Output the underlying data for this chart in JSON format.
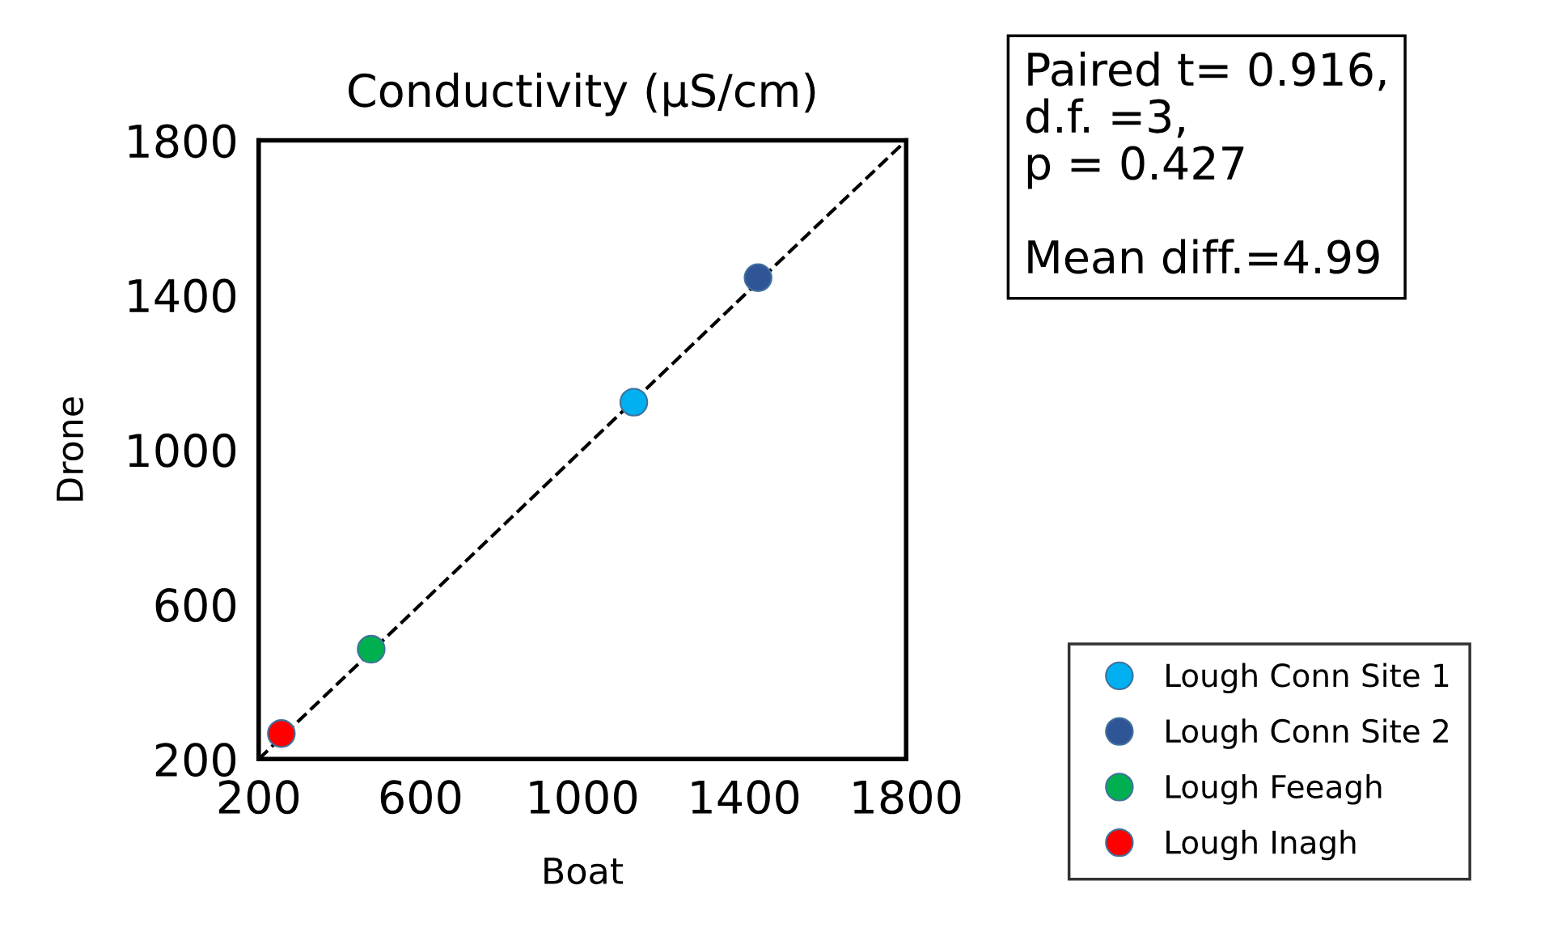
{
  "chart_data": {
    "type": "scatter",
    "title": "Conductivity (µS/cm)",
    "xlabel": "Boat",
    "ylabel": "Drone",
    "xlim": [
      200,
      1800
    ],
    "ylim": [
      200,
      1800
    ],
    "xticks": [
      200,
      600,
      1000,
      1400,
      1800
    ],
    "yticks": [
      200,
      600,
      1000,
      1400,
      1800
    ],
    "grid": false,
    "legend": "bottom right",
    "marker": "circle",
    "series": [
      {
        "name": "Lough Conn Site 1",
        "color": "#00b0f0",
        "x": [
          1127
        ],
        "values": [
          1123
        ]
      },
      {
        "name": "Lough Conn Site 2",
        "color": "#2f5597",
        "x": [
          1434
        ],
        "values": [
          1445
        ]
      },
      {
        "name": "Lough Feeagh",
        "color": "#00b050",
        "x": [
          478
        ],
        "values": [
          484
        ]
      },
      {
        "name": "Lough Inagh",
        "color": "#ff0000",
        "x": [
          256
        ],
        "values": [
          266
        ]
      },
      {
        "type": "line",
        "color": "#000000",
        "line_style": "dashed",
        "marker": "none",
        "x": [
          200,
          1800
        ],
        "values": [
          200,
          1800
        ]
      }
    ],
    "annotations": [
      "Paired t= 0.916,\nd.f. =3,\np = 0.427\n\nMean diff.=4.99"
    ]
  }
}
